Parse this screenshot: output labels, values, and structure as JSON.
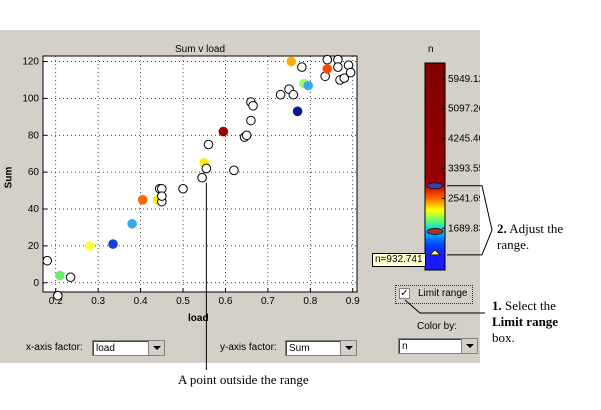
{
  "chart_data": {
    "type": "scatter",
    "title": "Sum v load",
    "xlabel": "load",
    "ylabel": "Sum",
    "xlim": [
      0.17,
      0.91
    ],
    "ylim": [
      -5,
      123
    ],
    "xticks": [
      "0.2",
      "0.3",
      "0.4",
      "0.5",
      "0.6",
      "0.7",
      "0.8",
      "0.9"
    ],
    "xtick_values": [
      0.2,
      0.3,
      0.4,
      0.5,
      0.6,
      0.7,
      0.8,
      0.9
    ],
    "yticks": [
      "0",
      "20",
      "40",
      "60",
      "80",
      "100",
      "120"
    ],
    "ytick_values": [
      0,
      20,
      40,
      60,
      80,
      100,
      120
    ],
    "grid": true,
    "points": [
      {
        "x": 0.18,
        "y": 12,
        "color": null
      },
      {
        "x": 0.205,
        "y": -7,
        "color": null
      },
      {
        "x": 0.21,
        "y": 4,
        "color": "#66ee66"
      },
      {
        "x": 0.235,
        "y": 3,
        "color": null
      },
      {
        "x": 0.28,
        "y": 20,
        "color": "#ffff33"
      },
      {
        "x": 0.335,
        "y": 21,
        "color": "#1a3fd9"
      },
      {
        "x": 0.38,
        "y": 32,
        "color": "#33aaee"
      },
      {
        "x": 0.405,
        "y": 45,
        "color": "#ff6600"
      },
      {
        "x": 0.44,
        "y": 45,
        "color": "#ffee00"
      },
      {
        "x": 0.445,
        "y": 51,
        "color": null
      },
      {
        "x": 0.45,
        "y": 51,
        "color": null
      },
      {
        "x": 0.45,
        "y": 44,
        "color": null
      },
      {
        "x": 0.45,
        "y": 47,
        "color": null
      },
      {
        "x": 0.5,
        "y": 51,
        "color": null
      },
      {
        "x": 0.545,
        "y": 57,
        "color": null
      },
      {
        "x": 0.55,
        "y": 65,
        "color": "#ffee00"
      },
      {
        "x": 0.555,
        "y": 62,
        "color": null
      },
      {
        "x": 0.56,
        "y": 75,
        "color": null
      },
      {
        "x": 0.595,
        "y": 82,
        "color": "#990000"
      },
      {
        "x": 0.62,
        "y": 61,
        "color": null
      },
      {
        "x": 0.645,
        "y": 79,
        "color": null
      },
      {
        "x": 0.65,
        "y": 80,
        "color": null
      },
      {
        "x": 0.66,
        "y": 88,
        "color": null
      },
      {
        "x": 0.66,
        "y": 98,
        "color": null
      },
      {
        "x": 0.665,
        "y": 96,
        "color": null
      },
      {
        "x": 0.73,
        "y": 102,
        "color": null
      },
      {
        "x": 0.75,
        "y": 105,
        "color": null
      },
      {
        "x": 0.755,
        "y": 120,
        "color": "#ffaa00"
      },
      {
        "x": 0.76,
        "y": 102,
        "color": null
      },
      {
        "x": 0.77,
        "y": 93,
        "color": "#0a1a8c"
      },
      {
        "x": 0.78,
        "y": 117,
        "color": null
      },
      {
        "x": 0.785,
        "y": 108,
        "color": "#99ff66"
      },
      {
        "x": 0.795,
        "y": 107,
        "color": "#33aaee"
      },
      {
        "x": 0.835,
        "y": 112,
        "color": null
      },
      {
        "x": 0.84,
        "y": 121,
        "color": null
      },
      {
        "x": 0.84,
        "y": 116,
        "color": "#ff4400"
      },
      {
        "x": 0.865,
        "y": 121,
        "color": null
      },
      {
        "x": 0.865,
        "y": 117,
        "color": null
      },
      {
        "x": 0.87,
        "y": 110,
        "color": null
      },
      {
        "x": 0.88,
        "y": 111,
        "color": null
      },
      {
        "x": 0.89,
        "y": 118,
        "color": null
      },
      {
        "x": 0.895,
        "y": 114,
        "color": null
      }
    ]
  },
  "colorbar": {
    "title": "n",
    "ticks": [
      "5949.12",
      "5097.26",
      "4245.40",
      "3393.55",
      "2541.69",
      "1689.83"
    ],
    "tick_values": [
      5949.12,
      5097.26,
      4245.4,
      3393.55,
      2541.69,
      1689.83
    ],
    "vmin": 500,
    "vmax": 6400,
    "limit_low": 932.741,
    "limit_high": 2900,
    "tooltip": "n=932.741"
  },
  "limit_range": {
    "label": "Limit range",
    "checked": true
  },
  "color_by": {
    "label": "Color by:",
    "value": "n"
  },
  "x_axis_factor": {
    "label": "x-axis factor:",
    "value": "load"
  },
  "y_axis_factor": {
    "label": "y-axis factor:",
    "value": "Sum"
  },
  "annotations": {
    "adjust_num": "2.",
    "adjust_text1": "Adjust the",
    "adjust_text2": "range.",
    "select_num": "1.",
    "select_text": "Select the",
    "select_bold": "Limit range",
    "select_text2": "box.",
    "outside": "A point outside the range"
  }
}
